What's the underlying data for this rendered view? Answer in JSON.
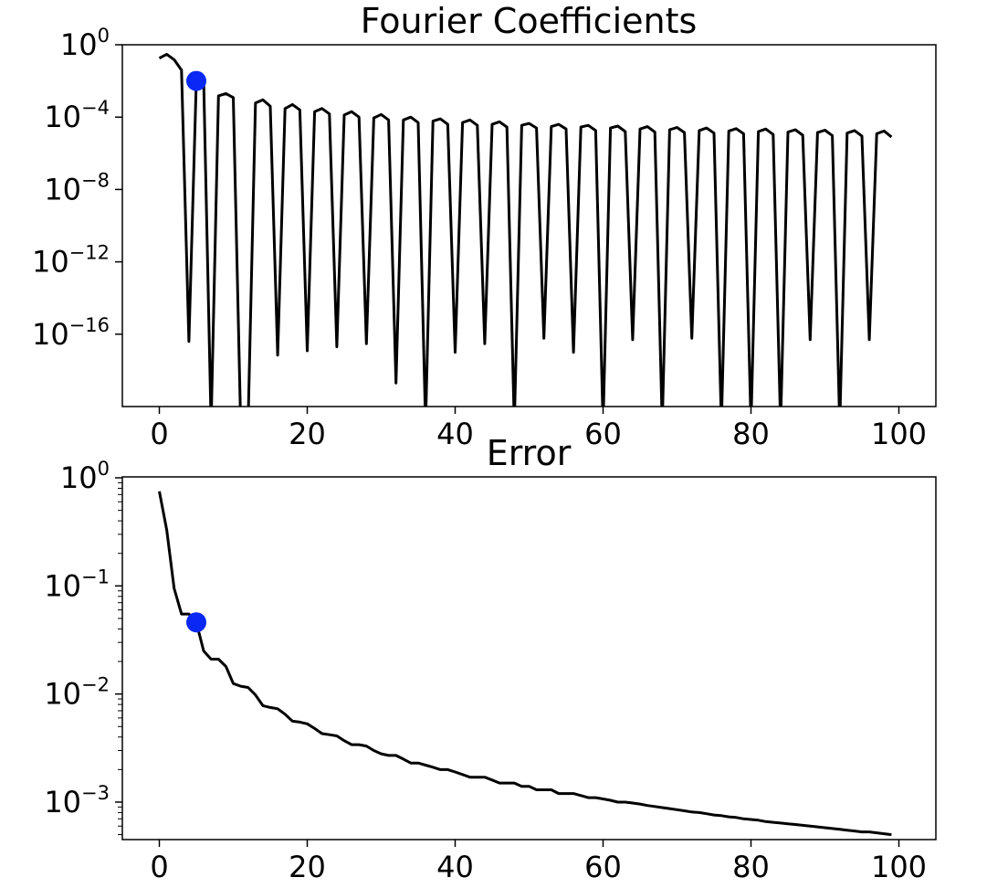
{
  "chart_data": [
    {
      "type": "line",
      "title": "Fourier Coefficients",
      "xlabel": "",
      "ylabel": "",
      "yscale": "log",
      "xlim": [
        -5,
        105
      ],
      "ylim": [
        1e-20,
        1
      ],
      "xticks": [
        0,
        20,
        40,
        60,
        80,
        100
      ],
      "yticks": [
        {
          "base": "10",
          "exp": "0",
          "value": 1
        },
        {
          "base": "10",
          "exp": "−4",
          "value": 0.0001
        },
        {
          "base": "10",
          "exp": "−8",
          "value": 1e-08
        },
        {
          "base": "10",
          "exp": "−12",
          "value": 1e-12
        },
        {
          "base": "10",
          "exp": "−16",
          "value": 1e-16
        }
      ],
      "grid": false,
      "line_color": "#000000",
      "marker_color": "#0a28f5",
      "x": [
        0,
        1,
        2,
        3,
        4,
        5,
        6,
        7,
        8,
        9,
        10,
        11,
        12,
        13,
        14,
        15,
        16,
        17,
        18,
        19,
        20,
        21,
        22,
        23,
        24,
        25,
        26,
        27,
        28,
        29,
        30,
        31,
        32,
        33,
        34,
        35,
        36,
        37,
        38,
        39,
        40,
        41,
        42,
        43,
        44,
        45,
        46,
        47,
        48,
        49,
        50,
        51,
        52,
        53,
        54,
        55,
        56,
        57,
        58,
        59,
        60,
        61,
        62,
        63,
        64,
        65,
        66,
        67,
        68,
        69,
        70,
        71,
        72,
        73,
        74,
        75,
        76,
        77,
        78,
        79,
        80,
        81,
        82,
        83,
        84,
        85,
        86,
        87,
        88,
        89,
        90,
        91,
        92,
        93,
        94,
        95,
        96,
        97,
        98,
        99
      ],
      "values": [
        0.18,
        0.3,
        0.15,
        0.04,
        4e-17,
        0.01,
        0.009,
        1e-25,
        0.0015,
        0.002,
        0.0012,
        1e-25,
        1e-25,
        0.0006,
        0.0009,
        0.0004,
        7e-18,
        0.0003,
        0.0005,
        0.00025,
        1.2e-17,
        0.0002,
        0.0003,
        0.00015,
        2e-17,
        0.00013,
        0.0002,
        0.0001,
        3e-17,
        9e-05,
        0.00014,
        7e-05,
        2e-19,
        7e-05,
        0.0001,
        5e-05,
        1e-25,
        6e-05,
        8e-05,
        4e-05,
        1e-17,
        5e-05,
        7e-05,
        3.5e-05,
        3e-17,
        4e-05,
        5.5e-05,
        2.8e-05,
        1e-25,
        3.5e-05,
        4.5e-05,
        2.5e-05,
        6e-17,
        3e-05,
        4e-05,
        2.2e-05,
        1e-17,
        2.8e-05,
        3.5e-05,
        1.8e-05,
        1e-25,
        2.5e-05,
        3.2e-05,
        1.6e-05,
        5e-17,
        2.2e-05,
        3e-05,
        1.5e-05,
        1e-25,
        2e-05,
        2.7e-05,
        1.4e-05,
        6e-17,
        1.8e-05,
        2.5e-05,
        1.3e-05,
        1e-25,
        1.7e-05,
        2.3e-05,
        1.2e-05,
        1e-25,
        1.6e-05,
        2.2e-05,
        1.1e-05,
        1e-25,
        1.5e-05,
        2e-05,
        1e-05,
        5e-17,
        1.4e-05,
        1.9e-05,
        9.5e-06,
        1e-25,
        1.3e-05,
        1.8e-05,
        9e-06,
        5e-17,
        1.2e-05,
        1.7e-05,
        8e-06
      ],
      "highlight": {
        "x": 5,
        "y": 0.01
      }
    },
    {
      "type": "line",
      "title": "Error",
      "xlabel": "",
      "ylabel": "",
      "yscale": "log",
      "xlim": [
        -5,
        105
      ],
      "ylim": [
        0.00045,
        1.02
      ],
      "xticks": [
        0,
        20,
        40,
        60,
        80,
        100
      ],
      "yticks": [
        {
          "base": "10",
          "exp": "0",
          "value": 1
        },
        {
          "base": "10",
          "exp": "−1",
          "value": 0.1
        },
        {
          "base": "10",
          "exp": "−2",
          "value": 0.01
        },
        {
          "base": "10",
          "exp": "−3",
          "value": 0.001
        }
      ],
      "grid": false,
      "line_color": "#000000",
      "marker_color": "#0a28f5",
      "x": [
        0,
        1,
        2,
        3,
        4,
        5,
        6,
        7,
        8,
        9,
        10,
        11,
        12,
        13,
        14,
        15,
        16,
        17,
        18,
        19,
        20,
        21,
        22,
        23,
        24,
        25,
        26,
        27,
        28,
        29,
        30,
        31,
        32,
        33,
        34,
        35,
        36,
        37,
        38,
        39,
        40,
        41,
        42,
        43,
        44,
        45,
        46,
        47,
        48,
        49,
        50,
        51,
        52,
        53,
        54,
        55,
        56,
        57,
        58,
        59,
        60,
        61,
        62,
        63,
        64,
        65,
        66,
        67,
        68,
        69,
        70,
        71,
        72,
        73,
        74,
        75,
        76,
        77,
        78,
        79,
        80,
        81,
        82,
        83,
        84,
        85,
        86,
        87,
        88,
        89,
        90,
        91,
        92,
        93,
        94,
        95,
        96,
        97,
        98,
        99
      ],
      "values": [
        0.75,
        0.33,
        0.095,
        0.055,
        0.055,
        0.046,
        0.025,
        0.021,
        0.021,
        0.018,
        0.0125,
        0.0118,
        0.0115,
        0.0098,
        0.0078,
        0.0075,
        0.0073,
        0.0065,
        0.0056,
        0.0055,
        0.0053,
        0.0048,
        0.0043,
        0.0042,
        0.0041,
        0.0037,
        0.0034,
        0.0034,
        0.0033,
        0.003,
        0.0028,
        0.0027,
        0.0027,
        0.0025,
        0.0023,
        0.0023,
        0.0022,
        0.0021,
        0.002,
        0.002,
        0.0019,
        0.0018,
        0.0017,
        0.0017,
        0.0017,
        0.0016,
        0.0015,
        0.0015,
        0.0015,
        0.0014,
        0.0014,
        0.0013,
        0.0013,
        0.0013,
        0.0012,
        0.0012,
        0.0012,
        0.00115,
        0.0011,
        0.0011,
        0.00107,
        0.00104,
        0.001,
        0.001,
        0.00098,
        0.00096,
        0.00093,
        0.00091,
        0.00089,
        0.00087,
        0.00085,
        0.00083,
        0.00081,
        0.0008,
        0.00078,
        0.00076,
        0.00075,
        0.00073,
        0.00072,
        0.0007,
        0.00069,
        0.00068,
        0.00066,
        0.00065,
        0.00064,
        0.00063,
        0.00062,
        0.00061,
        0.0006,
        0.00059,
        0.00058,
        0.00057,
        0.00056,
        0.00055,
        0.00054,
        0.00053,
        0.00053,
        0.00052,
        0.00051,
        0.0005
      ],
      "highlight": {
        "x": 5,
        "y": 0.046
      }
    }
  ]
}
